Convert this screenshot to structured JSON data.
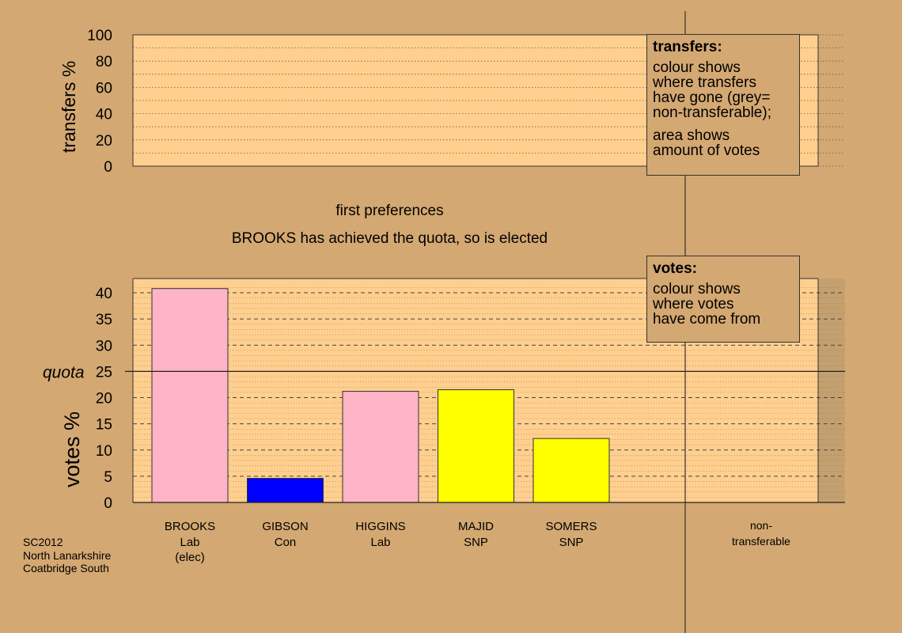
{
  "chart_data": [
    {
      "type": "bar",
      "title": "",
      "ylabel": "transfers %",
      "ylim": [
        0,
        100
      ],
      "yticks": [
        0,
        20,
        40,
        60,
        80,
        100
      ],
      "categories": [],
      "values": [],
      "grid": true
    },
    {
      "type": "bar",
      "title": "first preferences",
      "subtitle": "BROOKS has achieved the quota, so is elected",
      "ylabel": "votes %",
      "ylim": [
        0,
        42
      ],
      "yticks": [
        0,
        5,
        10,
        15,
        20,
        25,
        30,
        35,
        40
      ],
      "quota": {
        "label": "quota",
        "value": 25
      },
      "categories": [
        {
          "name": "BROOKS",
          "party": "Lab",
          "note": "(elec)"
        },
        {
          "name": "GIBSON",
          "party": "Con",
          "note": ""
        },
        {
          "name": "HIGGINS",
          "party": "Lab",
          "note": ""
        },
        {
          "name": "MAJID",
          "party": "SNP",
          "note": ""
        },
        {
          "name": "SOMERS",
          "party": "SNP",
          "note": ""
        }
      ],
      "values": [
        40.8,
        4.6,
        21.2,
        21.5,
        12.2
      ],
      "colors": [
        "#ffb3c6",
        "#0000ff",
        "#ffb3c6",
        "#ffff00",
        "#ffff00"
      ],
      "nontransferable_label": "non-\ntransferable",
      "grid": true
    }
  ],
  "legend_transfers": {
    "title": "transfers:",
    "lines1": [
      "colour shows",
      "where transfers",
      "have gone (grey=",
      "non-transferable);"
    ],
    "lines2": [
      "area shows",
      "amount of votes"
    ]
  },
  "legend_votes": {
    "title": "votes:",
    "lines": [
      "colour shows",
      "where votes",
      "have come from"
    ]
  },
  "footer": [
    "SC2012",
    "North Lanarkshire",
    "Coatbridge South"
  ],
  "colors": {
    "background": "#d4a872",
    "plot_bg": "#ffcf8f",
    "nontransferable_band": "#c4a070"
  }
}
